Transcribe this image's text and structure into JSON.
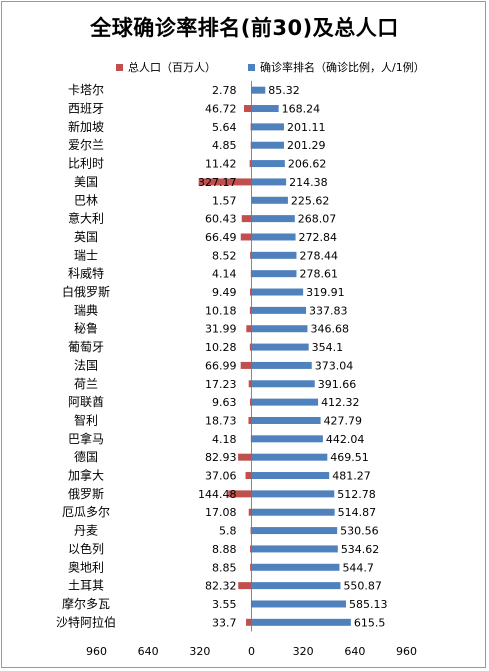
{
  "chart_data": {
    "type": "bar",
    "orientation": "horizontal-diverging",
    "title": "全球确诊率排名(前30)及总人口",
    "legend_position": "top",
    "categories": [
      "卡塔尔",
      "西班牙",
      "新加坡",
      "爱尔兰",
      "比利时",
      "美国",
      "巴林",
      "意大利",
      "英国",
      "瑞士",
      "科威特",
      "白俄罗斯",
      "瑞典",
      "秘鲁",
      "葡萄牙",
      "法国",
      "荷兰",
      "阿联酋",
      "智利",
      "巴拿马",
      "德国",
      "加拿大",
      "俄罗斯",
      "厄瓜多尔",
      "丹麦",
      "以色列",
      "奥地利",
      "土耳其",
      "摩尔多瓦",
      "沙特阿拉伯"
    ],
    "series": [
      {
        "name": "总人口（百万人）",
        "color": "#c0504d",
        "side": "left",
        "values": [
          2.78,
          46.72,
          5.64,
          4.85,
          11.42,
          327.17,
          1.57,
          60.43,
          66.49,
          8.52,
          4.14,
          9.49,
          10.18,
          31.99,
          10.28,
          66.99,
          17.23,
          9.63,
          18.73,
          4.18,
          82.93,
          37.06,
          144.48,
          17.08,
          5.8,
          8.88,
          8.85,
          82.32,
          3.55,
          33.7
        ]
      },
      {
        "name": "确诊率排名（确诊比例，人/1例）",
        "color": "#4f81bd",
        "side": "right",
        "values": [
          85.32,
          168.24,
          201.11,
          201.29,
          206.62,
          214.38,
          225.62,
          268.07,
          272.84,
          278.44,
          278.61,
          319.91,
          337.83,
          346.68,
          354.1,
          373.04,
          391.66,
          412.32,
          427.79,
          442.04,
          469.51,
          481.27,
          512.78,
          514.87,
          530.56,
          534.62,
          544.7,
          550.87,
          585.13,
          615.5
        ]
      }
    ],
    "xlim": [
      -960,
      960
    ],
    "xticks": [
      -960,
      -640,
      -320,
      0,
      320,
      640,
      960
    ],
    "xtick_labels": [
      "960",
      "640",
      "320",
      "0",
      "320",
      "640",
      "960"
    ],
    "grid": false
  }
}
